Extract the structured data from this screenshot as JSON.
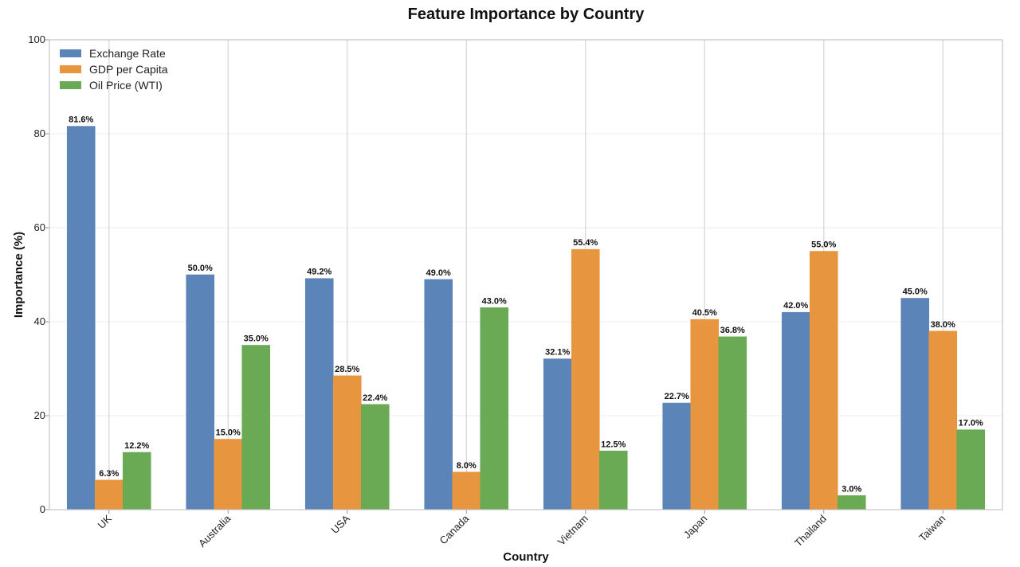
{
  "chart_data": {
    "type": "bar",
    "title": "Feature Importance by Country",
    "xlabel": "Country",
    "ylabel": "Importance (%)",
    "ylim": [
      0,
      100
    ],
    "yticks": [
      0,
      20,
      40,
      60,
      80,
      100
    ],
    "grid": true,
    "legend_position": "top-left",
    "value_suffix": "%",
    "categories": [
      "UK",
      "Australia",
      "USA",
      "Canada",
      "Vietnam",
      "Japan",
      "Thailand",
      "Taiwan"
    ],
    "series": [
      {
        "name": "Exchange Rate",
        "color": "#5b84b8",
        "values": [
          81.6,
          50.0,
          49.2,
          49.0,
          32.1,
          22.7,
          42.0,
          45.0
        ]
      },
      {
        "name": "GDP per Capita",
        "color": "#e8953f",
        "values": [
          6.3,
          15.0,
          28.5,
          8.0,
          55.4,
          40.5,
          55.0,
          38.0
        ]
      },
      {
        "name": "Oil Price (WTI)",
        "color": "#6aaa55",
        "values": [
          12.2,
          35.0,
          22.4,
          43.0,
          12.5,
          36.8,
          3.0,
          17.0
        ]
      }
    ]
  }
}
